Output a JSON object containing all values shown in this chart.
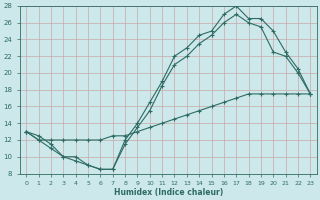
{
  "xlabel": "Humidex (Indice chaleur)",
  "ylabel": "",
  "bg_color": "#cde8ea",
  "grid_color": "#b8d8da",
  "line_color": "#2d6b63",
  "xlim": [
    -0.5,
    23.5
  ],
  "ylim": [
    8,
    28
  ],
  "xticks": [
    0,
    1,
    2,
    3,
    4,
    5,
    6,
    7,
    8,
    9,
    10,
    11,
    12,
    13,
    14,
    15,
    16,
    17,
    18,
    19,
    20,
    21,
    22,
    23
  ],
  "yticks": [
    8,
    10,
    12,
    14,
    16,
    18,
    20,
    22,
    24,
    26,
    28
  ],
  "line1_x": [
    0,
    1,
    2,
    3,
    4,
    5,
    6,
    7,
    8,
    9,
    10,
    11,
    12,
    13,
    14,
    15,
    16,
    17,
    18,
    19,
    20,
    21,
    22,
    23
  ],
  "line1_y": [
    13,
    12,
    11,
    10,
    10,
    9,
    8.5,
    8.5,
    12,
    14,
    16.5,
    19,
    22,
    23,
    24.5,
    25,
    27,
    28,
    26.5,
    26.5,
    25,
    22.5,
    20.5,
    17.5
  ],
  "line2_x": [
    0,
    1,
    2,
    3,
    4,
    5,
    6,
    7,
    8,
    9,
    10,
    11,
    12,
    13,
    14,
    15,
    16,
    17,
    18,
    19,
    20,
    21,
    22,
    23
  ],
  "line2_y": [
    13,
    12.5,
    11.5,
    10,
    9.5,
    9,
    8.5,
    8.5,
    11.5,
    13.5,
    15.5,
    18.5,
    21,
    22,
    23.5,
    24.5,
    26,
    27,
    26,
    25.5,
    22.5,
    22,
    20,
    17.5
  ],
  "line3_x": [
    0,
    1,
    2,
    3,
    4,
    5,
    6,
    7,
    8,
    9,
    10,
    11,
    12,
    13,
    14,
    15,
    16,
    17,
    18,
    19,
    20,
    21,
    22,
    23
  ],
  "line3_y": [
    13,
    12,
    12,
    12,
    12,
    12,
    12,
    12.5,
    12.5,
    13,
    13.5,
    14,
    14.5,
    15,
    15.5,
    16,
    16.5,
    17,
    17.5,
    17.5,
    17.5,
    17.5,
    17.5,
    17.5
  ]
}
